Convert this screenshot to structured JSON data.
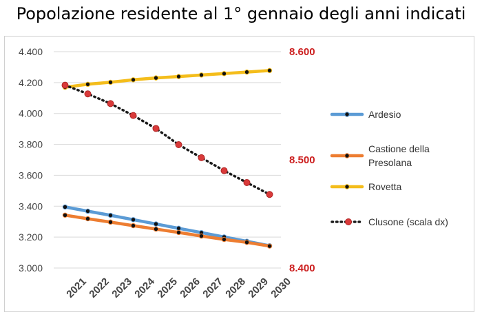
{
  "title": "Popolazione residente al 1° gennaio degli anni indicati",
  "colors": {
    "Ardesio": "#5b9bd5",
    "Castione": "#ed7d31",
    "Rovetta": "#f4bd1b",
    "Clusone": "#1a1a1a",
    "clusone_marker": "#d93a3a",
    "right_axis_text": "#cc1f1f"
  },
  "chart_data": {
    "type": "line",
    "title": "Popolazione residente al 1° gennaio degli anni indicati",
    "x": [
      2021,
      2022,
      2023,
      2024,
      2025,
      2026,
      2027,
      2028,
      2029,
      2030
    ],
    "y_left": {
      "ylim": [
        3000,
        4400
      ],
      "ticks": [
        3000,
        3200,
        3400,
        3600,
        3800,
        4000,
        4200,
        4400
      ],
      "tick_labels": [
        "3.000",
        "3.200",
        "3.400",
        "3.600",
        "3.800",
        "4.000",
        "4.200",
        "4.400"
      ]
    },
    "y_right": {
      "ylim": [
        8400,
        8600
      ],
      "ticks": [
        8400,
        8500,
        8600
      ],
      "tick_labels": [
        "8.400",
        "8.500",
        "8.600"
      ]
    },
    "grid": "horizontal",
    "legend_position": "right",
    "series": [
      {
        "name": "Ardesio",
        "axis": "left",
        "style": "solid",
        "values": [
          3395,
          3368,
          3341,
          3313,
          3285,
          3257,
          3229,
          3201,
          3173,
          3144
        ]
      },
      {
        "name": "Castione della Presolana",
        "legend_lines": [
          "Castione della",
          "Presolana"
        ],
        "axis": "left",
        "style": "solid",
        "values": [
          3342,
          3319,
          3297,
          3274,
          3252,
          3230,
          3207,
          3185,
          3166,
          3142
        ]
      },
      {
        "name": "Rovetta",
        "axis": "left",
        "style": "solid",
        "values": [
          4170,
          4189,
          4202,
          4218,
          4230,
          4239,
          4249,
          4258,
          4268,
          4278
        ]
      },
      {
        "name": "Clusone (scala dx)",
        "axis": "right",
        "style": "dotted",
        "values": [
          8569,
          8561,
          8552,
          8541,
          8529,
          8514,
          8502,
          8490,
          8479,
          8468
        ]
      }
    ]
  }
}
